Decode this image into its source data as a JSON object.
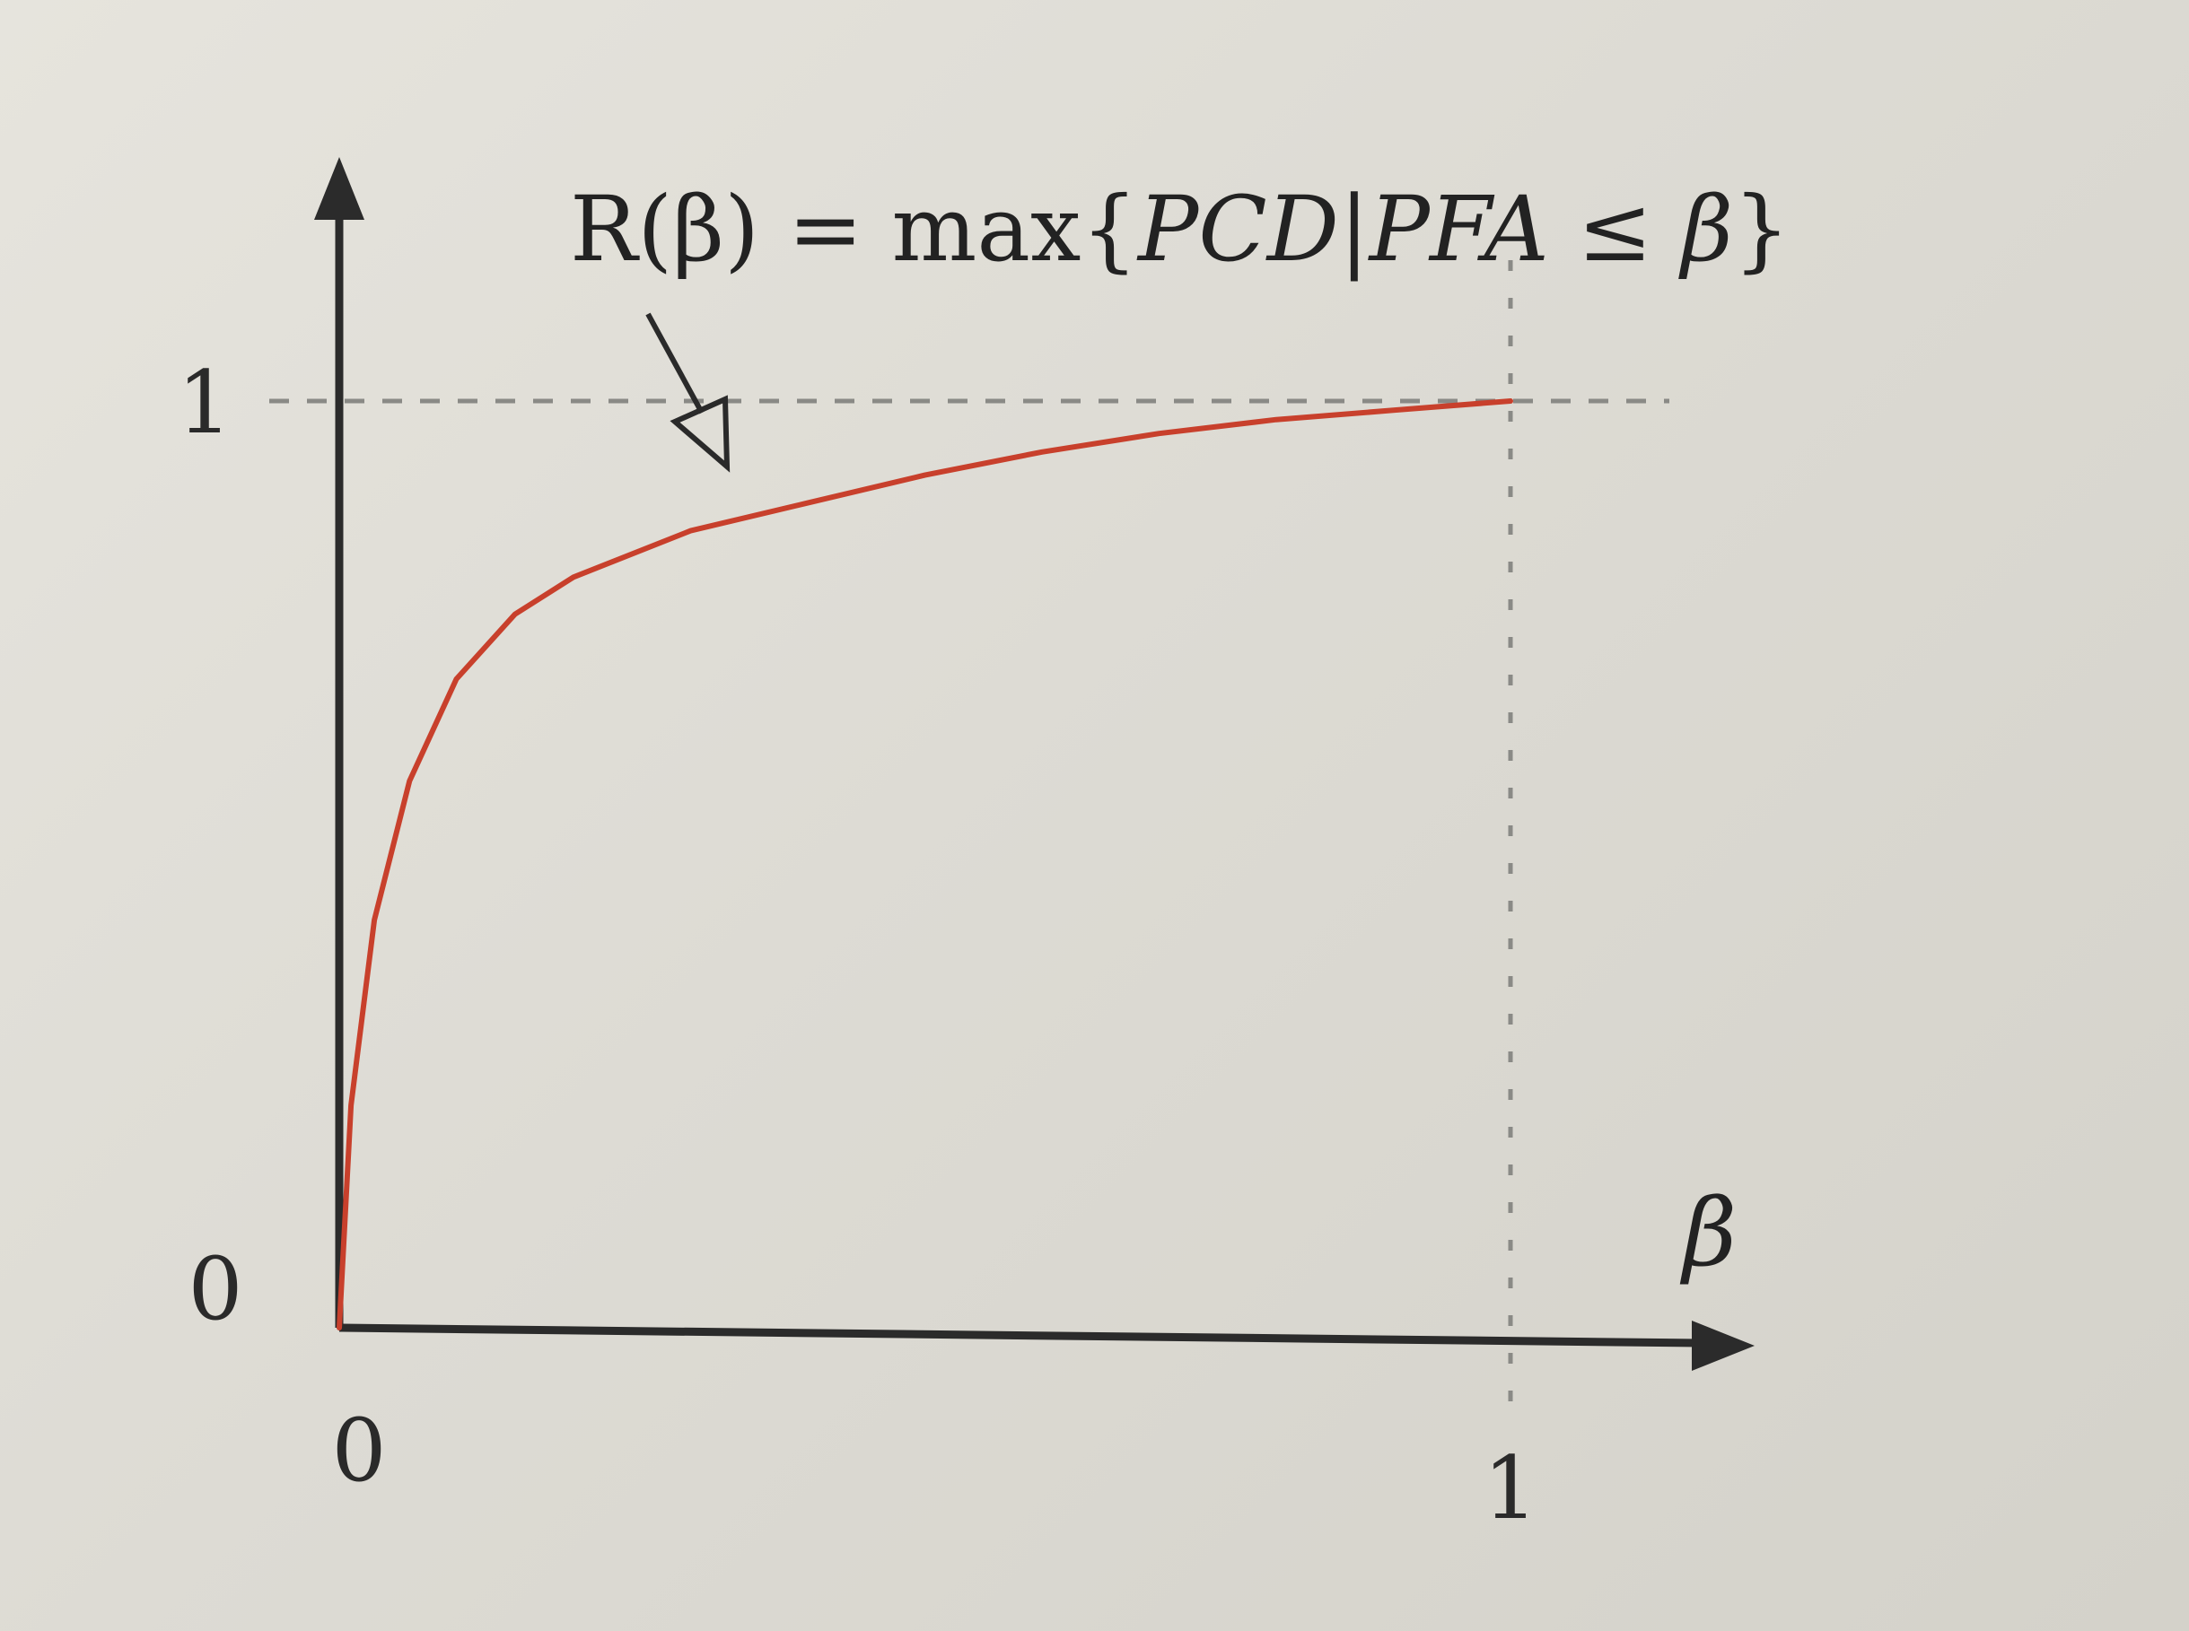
{
  "chart_data": {
    "type": "line",
    "title": "",
    "formula": {
      "lhs": "R(β) = max{",
      "pcd": "PCD",
      "bar": "|",
      "pfa": "PFA",
      "leq": " ≤ ",
      "beta": "β",
      "close": "}"
    },
    "xlabel": "β",
    "ylabel": "",
    "xlim": [
      0,
      1
    ],
    "ylim": [
      0,
      1
    ],
    "x_ticks": [
      "0",
      "1"
    ],
    "y_ticks": [
      "0",
      "1"
    ],
    "grid": false,
    "reference_lines": [
      "y = 1 (dashed)",
      "x = 1 (dashed)"
    ],
    "annotation_arrow": "points from formula to curve",
    "series": [
      {
        "color": "#c8402c",
        "x": [
          0,
          0.01,
          0.03,
          0.06,
          0.1,
          0.15,
          0.2,
          0.3,
          0.4,
          0.5,
          0.6,
          0.7,
          0.8,
          0.9,
          1.0
        ],
        "y": [
          0,
          0.24,
          0.44,
          0.59,
          0.7,
          0.77,
          0.81,
          0.86,
          0.89,
          0.92,
          0.945,
          0.965,
          0.98,
          0.99,
          1.0
        ]
      }
    ]
  }
}
